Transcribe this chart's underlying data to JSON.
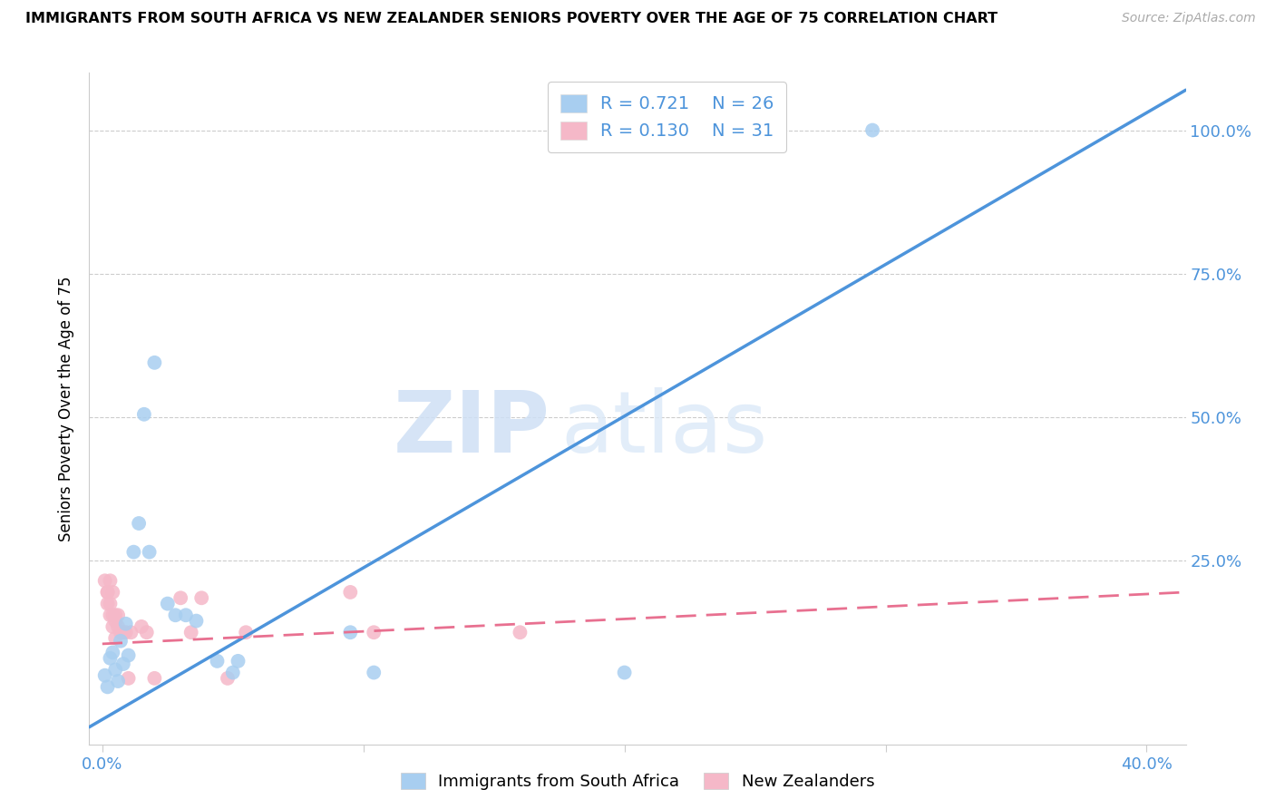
{
  "title": "IMMIGRANTS FROM SOUTH AFRICA VS NEW ZEALANDER SENIORS POVERTY OVER THE AGE OF 75 CORRELATION CHART",
  "source": "Source: ZipAtlas.com",
  "ylabel": "Seniors Poverty Over the Age of 75",
  "watermark_zip": "ZIP",
  "watermark_atlas": "atlas",
  "legend_blue_R": "R = 0.721",
  "legend_blue_N": "N = 26",
  "legend_pink_R": "R = 0.130",
  "legend_pink_N": "N = 31",
  "legend_label_blue": "Immigrants from South Africa",
  "legend_label_pink": "New Zealanders",
  "blue_color": "#a8cef0",
  "pink_color": "#f5b8c8",
  "blue_line_color": "#4d94db",
  "pink_line_color": "#e87090",
  "tick_color": "#4d94db",
  "grid_color": "#cccccc",
  "blue_scatter": [
    [
      0.001,
      0.05
    ],
    [
      0.002,
      0.03
    ],
    [
      0.003,
      0.08
    ],
    [
      0.004,
      0.09
    ],
    [
      0.005,
      0.06
    ],
    [
      0.006,
      0.04
    ],
    [
      0.007,
      0.11
    ],
    [
      0.008,
      0.07
    ],
    [
      0.009,
      0.14
    ],
    [
      0.01,
      0.085
    ],
    [
      0.012,
      0.265
    ],
    [
      0.014,
      0.315
    ],
    [
      0.016,
      0.505
    ],
    [
      0.018,
      0.265
    ],
    [
      0.02,
      0.595
    ],
    [
      0.025,
      0.175
    ],
    [
      0.028,
      0.155
    ],
    [
      0.032,
      0.155
    ],
    [
      0.036,
      0.145
    ],
    [
      0.044,
      0.075
    ],
    [
      0.05,
      0.055
    ],
    [
      0.052,
      0.075
    ],
    [
      0.095,
      0.125
    ],
    [
      0.104,
      0.055
    ],
    [
      0.2,
      0.055
    ],
    [
      0.295,
      1.0
    ]
  ],
  "pink_scatter": [
    [
      0.001,
      0.215
    ],
    [
      0.002,
      0.195
    ],
    [
      0.002,
      0.175
    ],
    [
      0.002,
      0.195
    ],
    [
      0.003,
      0.155
    ],
    [
      0.003,
      0.215
    ],
    [
      0.003,
      0.175
    ],
    [
      0.004,
      0.155
    ],
    [
      0.004,
      0.135
    ],
    [
      0.004,
      0.195
    ],
    [
      0.005,
      0.145
    ],
    [
      0.005,
      0.155
    ],
    [
      0.005,
      0.115
    ],
    [
      0.006,
      0.135
    ],
    [
      0.006,
      0.155
    ],
    [
      0.007,
      0.125
    ],
    [
      0.008,
      0.125
    ],
    [
      0.009,
      0.125
    ],
    [
      0.01,
      0.045
    ],
    [
      0.011,
      0.125
    ],
    [
      0.015,
      0.135
    ],
    [
      0.017,
      0.125
    ],
    [
      0.02,
      0.045
    ],
    [
      0.03,
      0.185
    ],
    [
      0.034,
      0.125
    ],
    [
      0.038,
      0.185
    ],
    [
      0.048,
      0.045
    ],
    [
      0.055,
      0.125
    ],
    [
      0.095,
      0.195
    ],
    [
      0.104,
      0.125
    ],
    [
      0.16,
      0.125
    ]
  ],
  "blue_trend_x": [
    -0.005,
    0.415
  ],
  "blue_trend_y": [
    -0.04,
    1.07
  ],
  "pink_trend_x": [
    0.0,
    0.415
  ],
  "pink_trend_y": [
    0.105,
    0.195
  ],
  "pink_trend_dashed": true,
  "xlim": [
    -0.005,
    0.415
  ],
  "ylim": [
    -0.07,
    1.1
  ],
  "yticks": [
    0.0,
    0.25,
    0.5,
    0.75,
    1.0
  ],
  "ytick_labels": [
    "",
    "25.0%",
    "50.0%",
    "75.0%",
    "100.0%"
  ],
  "xtick_positions": [
    0.0,
    0.1,
    0.2,
    0.3,
    0.4
  ],
  "xtick_labels": [
    "0.0%",
    "",
    "",
    "",
    "40.0%"
  ]
}
